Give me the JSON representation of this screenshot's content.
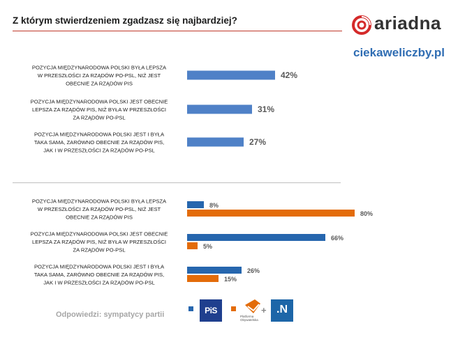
{
  "header": {
    "title": "Z którym stwierdzeniem zgadzasz się najbardziej?",
    "brand": "ariadna",
    "site": "ciekaweliczby.pl"
  },
  "footer": {
    "note": "Odpowiedzi: sympatycy partii",
    "legend": [
      {
        "logo_text": "PiS",
        "color": "#2666ae"
      },
      {
        "logo_text": "Platforma Obywatelska",
        "color": "#e36c0a"
      },
      {
        "logo_text": ".N",
        "color": "#e36c0a"
      }
    ],
    "plus": "+"
  },
  "colors": {
    "blue": "#4f81c7",
    "dark_blue": "#2666ae",
    "orange": "#e36c0a",
    "label": "#595959",
    "category": "#1c1c1c"
  },
  "chart_data": [
    {
      "type": "bar",
      "orientation": "horizontal",
      "categories": [
        "POZYCJA MIĘDZYNARODOWA POLSKI BYŁA LEPSZA W PRZESZŁOŚCI ZA RZĄDÓW PO-PSL, NIŻ JEST OBECNIE ZA RZĄDÓW PIS",
        "POZYCJA MIĘDZYNARODOWA POLSKI JEST OBECNIE LEPSZA ZA RZĄDÓW PIS, NIŻ BYŁA W PRZESZŁOŚCI ZA RZĄDÓW PO-PSL",
        "POZYCJA MIĘDZYNARODOWA POLSKI JEST I BYŁA TAKA SAMA, ZARÓWNO OBECNIE ZA RZĄDÓW PIS, JAK I W PRZESZŁOŚCI ZA RZĄDÓW PO-PSL"
      ],
      "category_lines": [
        [
          "POZYCJA MIĘDZYNARODOWA POLSKI BYŁA LEPSZA",
          "W PRZESZŁOŚCI ZA RZĄDÓW PO-PSL, NIŻ JEST",
          "OBECNIE ZA RZĄDÓW PIS"
        ],
        [
          "POZYCJA MIĘDZYNARODOWA POLSKI JEST OBECNIE",
          "LEPSZA ZA RZĄDÓW PIS, NIŻ BYŁA W PRZESZŁOŚCI",
          "ZA RZĄDÓW PO-PSL"
        ],
        [
          "POZYCJA MIĘDZYNARODOWA POLSKI JEST I BYŁA",
          "TAKA SAMA, ZARÓWNO OBECNIE ZA RZĄDÓW PIS,",
          "JAK I W PRZESZŁOŚCI ZA RZĄDÓW PO-PSL"
        ]
      ],
      "series": [
        {
          "values": [
            42,
            31,
            27
          ],
          "labels": [
            "42%",
            "31%",
            "27%"
          ],
          "color": "#4f81c7"
        }
      ],
      "xlim": [
        0,
        100
      ],
      "grid": false
    },
    {
      "type": "bar",
      "orientation": "horizontal",
      "categories": [
        "POZYCJA MIĘDZYNARODOWA POLSKI BYŁA LEPSZA W PRZESZŁOŚCI ZA RZĄDÓW PO-PSL, NIŻ JEST OBECNIE ZA RZĄDÓW PIS",
        "POZYCJA MIĘDZYNARODOWA POLSKI JEST OBECNIE LEPSZA ZA RZĄDÓW PIS, NIŻ BYŁA W PRZESZŁOŚCI ZA RZĄDÓW PO-PSL",
        "POZYCJA MIĘDZYNARODOWA POLSKI JEST I BYŁA TAKA SAMA, ZARÓWNO OBECNIE ZA RZĄDÓW PIS, JAK I W PRZESZŁOŚCI ZA RZĄDÓW PO-PSL"
      ],
      "category_lines": [
        [
          "POZYCJA MIĘDZYNARODOWA POLSKI BYŁA LEPSZA",
          "W PRZESZŁOŚCI ZA RZĄDÓW PO-PSL, NIŻ JEST",
          "OBECNIE ZA RZĄDÓW PIS"
        ],
        [
          "POZYCJA MIĘDZYNARODOWA POLSKI JEST OBECNIE",
          "LEPSZA ZA RZĄDÓW PIS, NIŻ BYŁA W PRZESZŁOŚCI",
          "ZA RZĄDÓW PO-PSL"
        ],
        [
          "POZYCJA MIĘDZYNARODOWA POLSKI JEST I BYŁA",
          "TAKA SAMA, ZARÓWNO OBECNIE ZA RZĄDÓW PIS,",
          "JAK I W PRZESZŁOŚCI ZA RZĄDÓW PO-PSL"
        ]
      ],
      "series": [
        {
          "values": [
            8,
            66,
            26
          ],
          "labels": [
            "8%",
            "66%",
            "26%"
          ],
          "color": "#2666ae"
        },
        {
          "values": [
            80,
            5,
            15
          ],
          "labels": [
            "80%",
            "5%",
            "15%"
          ],
          "color": "#e36c0a"
        }
      ],
      "xlim": [
        0,
        100
      ],
      "grid": false,
      "legend": "bottom"
    }
  ]
}
